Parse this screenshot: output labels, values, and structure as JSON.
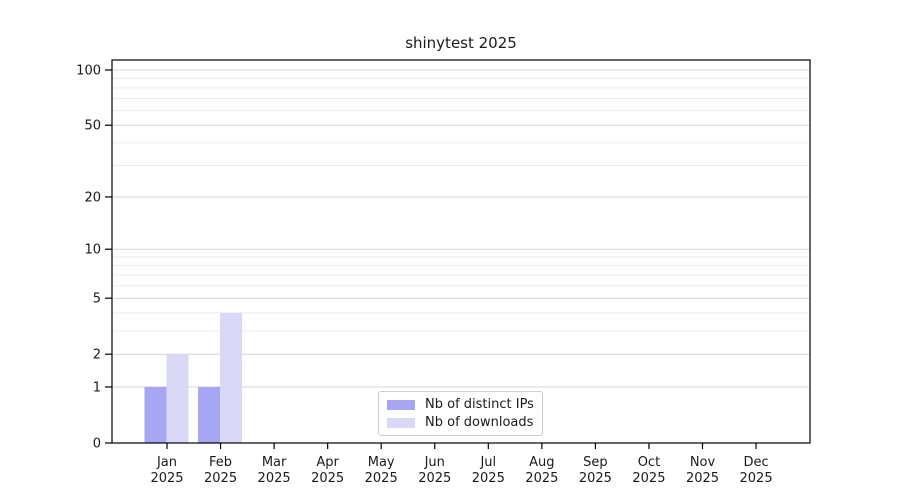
{
  "chart_data": {
    "type": "bar",
    "title": "shinytest 2025",
    "categories": [
      "Jan",
      "Feb",
      "Mar",
      "Apr",
      "May",
      "Jun",
      "Jul",
      "Aug",
      "Sep",
      "Oct",
      "Nov",
      "Dec"
    ],
    "x_tick_year": "2025",
    "series": [
      {
        "name": "Nb of distinct IPs",
        "color": "#a6a6f2",
        "values": [
          1,
          1,
          0,
          0,
          0,
          0,
          0,
          0,
          0,
          0,
          0,
          0
        ]
      },
      {
        "name": "Nb of downloads",
        "color": "#d9d9f7",
        "values": [
          2,
          4,
          0,
          0,
          0,
          0,
          0,
          0,
          0,
          0,
          0,
          0
        ]
      }
    ],
    "yscale": "log1p",
    "ylim": [
      0,
      100
    ],
    "y_major_ticks": [
      0,
      1,
      2,
      5,
      10,
      20,
      50,
      100
    ],
    "y_minor_gridlines": [
      3,
      4,
      6,
      7,
      8,
      9,
      30,
      40,
      60,
      70,
      80,
      90
    ],
    "grid": "horizontal",
    "legend_position": "lower center",
    "colors": {
      "axis": "#000000",
      "text": "#1a1a1a",
      "grid_major": "#d4d4d4",
      "grid_minor": "#ececec",
      "legend_border": "#cccccc",
      "background": "#ffffff"
    }
  }
}
